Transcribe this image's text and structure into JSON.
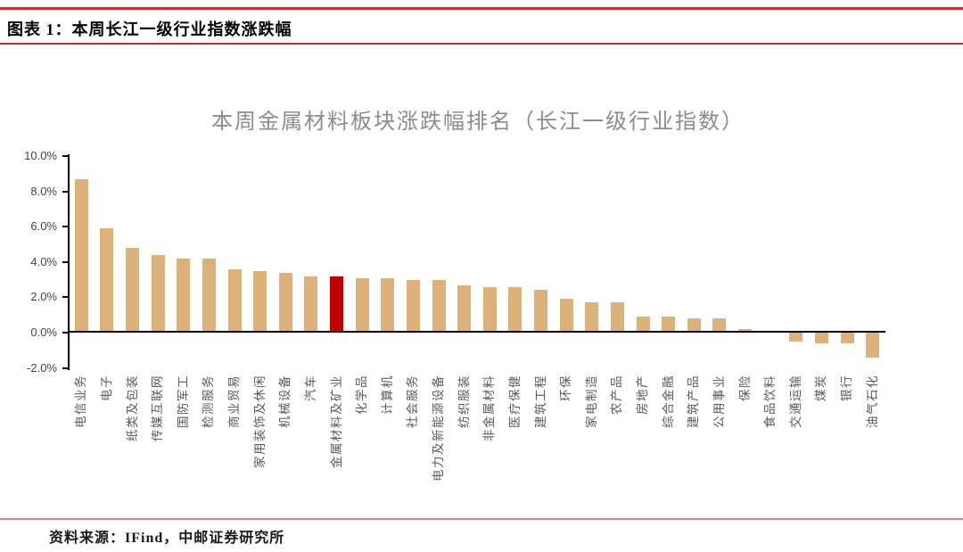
{
  "header": {
    "title": "图表 1：本周长江一级行业指数涨跌幅"
  },
  "source": {
    "label": "资料来源：IFind，中邮证券研究所"
  },
  "colors": {
    "top_rule": "#d02a2a",
    "header_rule": "#d02a2a",
    "bottom_rule": "#dc8181",
    "axis": "#000000",
    "title_text": "#8c8c8c",
    "bar": "#ddb27a",
    "highlight": "#c00000"
  },
  "chart_data": {
    "type": "bar",
    "title": "本周金属材料板块涨跌幅排名（长江一级行业指数）",
    "xlabel": "",
    "ylabel": "",
    "unit": "%",
    "ylim": [
      -2,
      10
    ],
    "ytick_step": 2,
    "grid": false,
    "legend": "none",
    "highlight_index": 10,
    "highlight_category": "金属材料及矿业",
    "categories": [
      "电信业务",
      "电子",
      "纸类及包装",
      "传媒互联网",
      "国防军工",
      "检测服务",
      "商业贸易",
      "家用装饰及休闲",
      "机械设备",
      "汽车",
      "金属材料及矿业",
      "化学品",
      "计算机",
      "社会服务",
      "电力及新能源设备",
      "纺织服装",
      "非金属材料",
      "医疗保健",
      "建筑工程",
      "环保",
      "家电制造",
      "农产品",
      "房地产",
      "综合金融",
      "建筑产品",
      "公用事业",
      "保险",
      "食品饮料",
      "交通运输",
      "煤炭",
      "银行",
      "油气石化"
    ],
    "values": [
      8.7,
      5.9,
      4.8,
      4.4,
      4.2,
      4.2,
      3.6,
      3.5,
      3.4,
      3.2,
      3.2,
      3.1,
      3.1,
      3.0,
      3.0,
      2.7,
      2.6,
      2.6,
      2.4,
      1.9,
      1.7,
      1.7,
      0.9,
      0.9,
      0.8,
      0.8,
      0.2,
      0.0,
      -0.5,
      -0.6,
      -0.6,
      -1.4
    ]
  }
}
